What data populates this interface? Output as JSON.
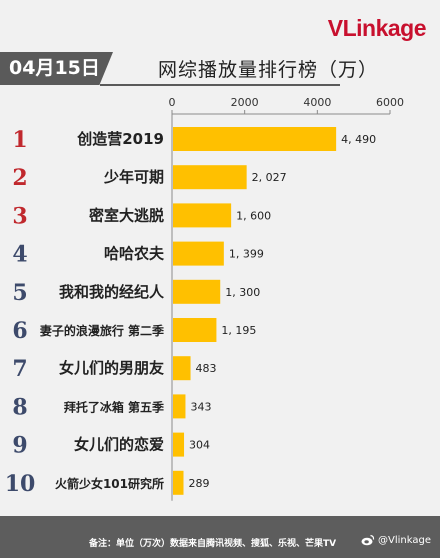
{
  "brand": {
    "logo_v": "V",
    "logo_rest": "Linkage"
  },
  "date": "04月15日",
  "title": "网综播放量排行榜（万）",
  "chart_data": {
    "type": "bar",
    "orientation": "horizontal",
    "title": "网综播放量排行榜（万）",
    "ranks": [
      "1",
      "2",
      "3",
      "4",
      "5",
      "6",
      "7",
      "8",
      "9",
      "10"
    ],
    "categories": [
      "创造营2019",
      "少年可期",
      "密室大逃脱",
      "哈哈农夫",
      "我和我的经纪人",
      "妻子的浪漫旅行 第二季",
      "女儿们的男朋友",
      "拜托了冰箱 第五季",
      "女儿们的恋爱",
      "火箭少女101研究所"
    ],
    "values": [
      4490,
      2027,
      1600,
      1399,
      1300,
      1195,
      483,
      343,
      304,
      289
    ],
    "value_labels": [
      "4, 490",
      "2, 027",
      "1, 600",
      "1, 399",
      "1, 300",
      "1, 195",
      "483",
      "343",
      "304",
      "289"
    ],
    "xticks": [
      0,
      2000,
      4000,
      6000
    ],
    "xlim": [
      0,
      6000
    ],
    "bar_color": "#ffc000",
    "rank_colors": [
      "#c0282d",
      "#c0282d",
      "#c0282d",
      "#3d4a6b",
      "#3d4a6b",
      "#3d4a6b",
      "#3d4a6b",
      "#3d4a6b",
      "#3d4a6b",
      "#3d4a6b"
    ],
    "grid": false,
    "legend": "none"
  },
  "footer": {
    "note": "备注：单位（万次）数据来自腾讯视频、搜狐、乐视、芒果TV",
    "credit": "@Vlinkage",
    "credit_icon": "weibo-icon"
  }
}
